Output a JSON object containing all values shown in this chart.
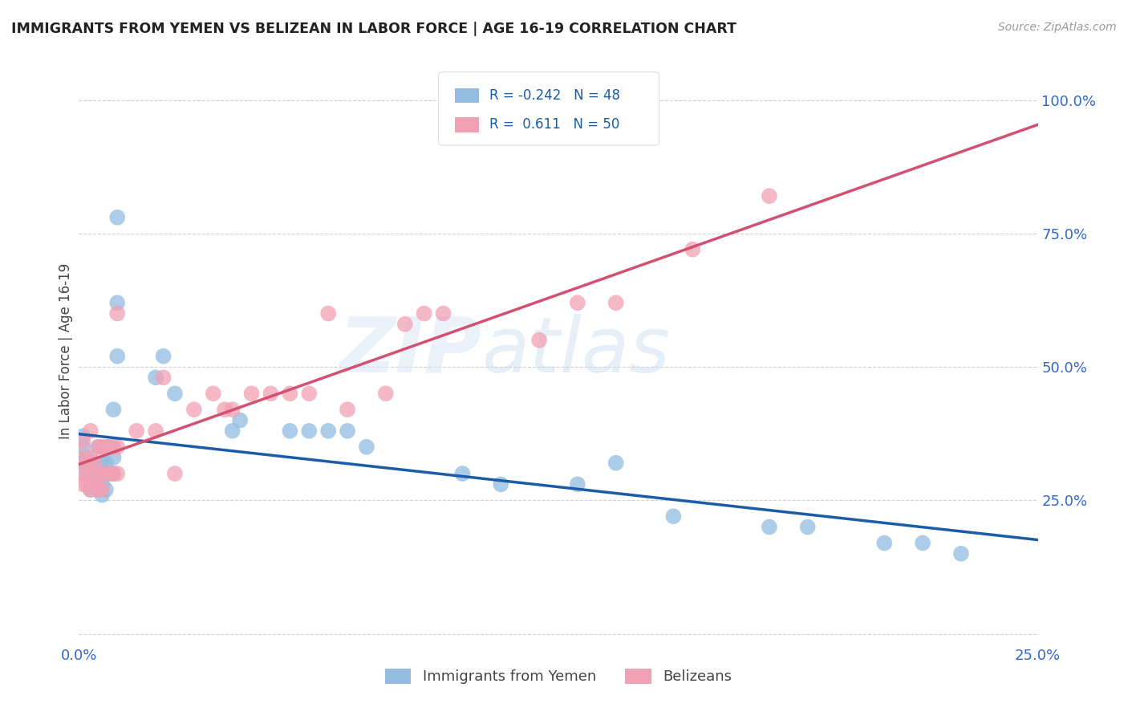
{
  "title": "IMMIGRANTS FROM YEMEN VS BELIZEAN IN LABOR FORCE | AGE 16-19 CORRELATION CHART",
  "source": "Source: ZipAtlas.com",
  "ylabel": "In Labor Force | Age 16-19",
  "ytick_labels": [
    "",
    "25.0%",
    "50.0%",
    "75.0%",
    "100.0%"
  ],
  "yticks": [
    0.0,
    0.25,
    0.5,
    0.75,
    1.0
  ],
  "xlim": [
    0.0,
    0.25
  ],
  "ylim": [
    -0.02,
    1.08
  ],
  "r_yemen": -0.242,
  "n_yemen": 48,
  "r_belize": 0.611,
  "n_belize": 50,
  "color_yemen": "#92bce0",
  "color_belize": "#f2a0b5",
  "line_color_yemen": "#1a5ca8",
  "line_color_belize": "#d45070",
  "background_color": "#ffffff",
  "yemen_x": [
    0.001,
    0.001,
    0.001,
    0.002,
    0.002,
    0.003,
    0.003,
    0.003,
    0.004,
    0.004,
    0.005,
    0.005,
    0.005,
    0.006,
    0.006,
    0.006,
    0.006,
    0.007,
    0.007,
    0.007,
    0.008,
    0.008,
    0.009,
    0.009,
    0.009,
    0.01,
    0.01,
    0.01,
    0.02,
    0.022,
    0.025,
    0.04,
    0.042,
    0.055,
    0.06,
    0.065,
    0.07,
    0.075,
    0.1,
    0.11,
    0.13,
    0.14,
    0.155,
    0.18,
    0.19,
    0.21,
    0.22,
    0.23
  ],
  "yemen_y": [
    0.32,
    0.35,
    0.37,
    0.3,
    0.33,
    0.27,
    0.3,
    0.32,
    0.28,
    0.32,
    0.27,
    0.3,
    0.35,
    0.26,
    0.28,
    0.3,
    0.32,
    0.27,
    0.3,
    0.32,
    0.3,
    0.35,
    0.3,
    0.33,
    0.42,
    0.52,
    0.62,
    0.78,
    0.48,
    0.52,
    0.45,
    0.38,
    0.4,
    0.38,
    0.38,
    0.38,
    0.38,
    0.35,
    0.3,
    0.28,
    0.28,
    0.32,
    0.22,
    0.2,
    0.2,
    0.17,
    0.17,
    0.15
  ],
  "belize_x": [
    0.001,
    0.001,
    0.001,
    0.001,
    0.002,
    0.002,
    0.003,
    0.003,
    0.003,
    0.003,
    0.004,
    0.004,
    0.005,
    0.005,
    0.005,
    0.006,
    0.006,
    0.006,
    0.007,
    0.007,
    0.008,
    0.008,
    0.009,
    0.009,
    0.01,
    0.01,
    0.01,
    0.015,
    0.02,
    0.022,
    0.025,
    0.03,
    0.035,
    0.038,
    0.04,
    0.045,
    0.05,
    0.055,
    0.06,
    0.065,
    0.07,
    0.08,
    0.085,
    0.09,
    0.095,
    0.12,
    0.13,
    0.14,
    0.16,
    0.18
  ],
  "belize_y": [
    0.28,
    0.3,
    0.33,
    0.36,
    0.28,
    0.32,
    0.27,
    0.3,
    0.33,
    0.38,
    0.28,
    0.32,
    0.27,
    0.3,
    0.35,
    0.27,
    0.3,
    0.35,
    0.3,
    0.35,
    0.3,
    0.35,
    0.3,
    0.35,
    0.3,
    0.35,
    0.6,
    0.38,
    0.38,
    0.48,
    0.3,
    0.42,
    0.45,
    0.42,
    0.42,
    0.45,
    0.45,
    0.45,
    0.45,
    0.6,
    0.42,
    0.45,
    0.58,
    0.6,
    0.6,
    0.55,
    0.62,
    0.62,
    0.72,
    0.82
  ]
}
